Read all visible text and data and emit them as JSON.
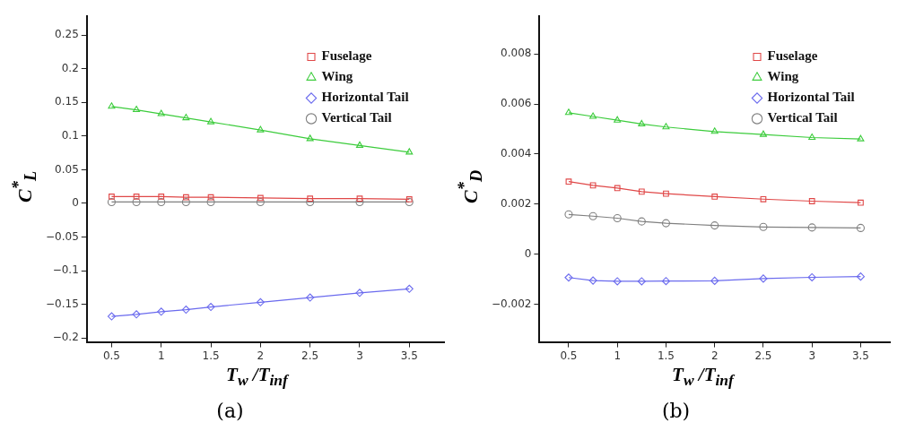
{
  "chart_data": [
    {
      "type": "line",
      "title": "(a)",
      "xlabel": "T$_{w}$ /T$_{inf}$",
      "ylabel": "C$^{*}$$_{L}$",
      "x": [
        0.5,
        0.75,
        1,
        1.25,
        1.5,
        2,
        2.5,
        3,
        3.5
      ],
      "xlim": [
        0.25,
        3.85
      ],
      "xticks": [
        0.5,
        1,
        1.5,
        2,
        2.5,
        3,
        3.5
      ],
      "ylim": [
        -0.206,
        0.278
      ],
      "yticks": [
        -0.2,
        -0.15,
        -0.1,
        -0.05,
        0,
        0.05,
        0.1,
        0.15,
        0.2,
        0.25
      ],
      "grid": false,
      "legend": "top right",
      "line_style": "solid",
      "series": [
        {
          "name": "Fuselage",
          "color": "#e04848",
          "marker": "square",
          "values": [
            0.01,
            0.01,
            0.01,
            0.009,
            0.009,
            0.008,
            0.007,
            0.007,
            0.006
          ]
        },
        {
          "name": "Wing",
          "color": "#3ccc3c",
          "marker": "triangle",
          "values": [
            0.144,
            0.139,
            0.133,
            0.127,
            0.121,
            0.109,
            0.096,
            0.086,
            0.076
          ]
        },
        {
          "name": "Horizontal Tail",
          "color": "#6a6aee",
          "marker": "diamond",
          "values": [
            -0.168,
            -0.165,
            -0.161,
            -0.158,
            -0.154,
            -0.147,
            -0.14,
            -0.133,
            -0.127
          ]
        },
        {
          "name": "Vertical Tail",
          "color": "#808080",
          "marker": "circle",
          "values": [
            0.002,
            0.002,
            0.002,
            0.002,
            0.002,
            0.002,
            0.002,
            0.002,
            0.002
          ]
        }
      ]
    },
    {
      "type": "line",
      "title": "(b)",
      "xlabel": "T$_{w}$ /T$_{inf}$",
      "ylabel": "C$^{*}$$_{D}$",
      "x": [
        0.5,
        0.75,
        1,
        1.25,
        1.5,
        2,
        2.5,
        3,
        3.5
      ],
      "xlim": [
        0.2,
        3.8
      ],
      "xticks": [
        0.5,
        1,
        1.5,
        2,
        2.5,
        3,
        3.5
      ],
      "ylim": [
        -0.0035,
        0.0095
      ],
      "yticks": [
        -0.002,
        0,
        0.002,
        0.004,
        0.006,
        0.008
      ],
      "grid": false,
      "legend": "top right",
      "line_style": "solid",
      "series": [
        {
          "name": "Fuselage",
          "color": "#e04848",
          "marker": "square",
          "values": [
            0.0029,
            0.00275,
            0.00264,
            0.0025,
            0.00242,
            0.0023,
            0.0022,
            0.00212,
            0.00206
          ]
        },
        {
          "name": "Wing",
          "color": "#3ccc3c",
          "marker": "triangle",
          "values": [
            0.00565,
            0.0055,
            0.00535,
            0.0052,
            0.00508,
            0.0049,
            0.00478,
            0.00466,
            0.0046
          ]
        },
        {
          "name": "Horizontal Tail",
          "color": "#6a6aee",
          "marker": "diamond",
          "values": [
            -0.00093,
            -0.00105,
            -0.00108,
            -0.00108,
            -0.00107,
            -0.00106,
            -0.00097,
            -0.00092,
            -0.00089
          ]
        },
        {
          "name": "Vertical Tail",
          "color": "#808080",
          "marker": "circle",
          "values": [
            0.00159,
            0.00152,
            0.00144,
            0.00131,
            0.00124,
            0.00115,
            0.00109,
            0.00107,
            0.00105
          ]
        }
      ]
    }
  ]
}
